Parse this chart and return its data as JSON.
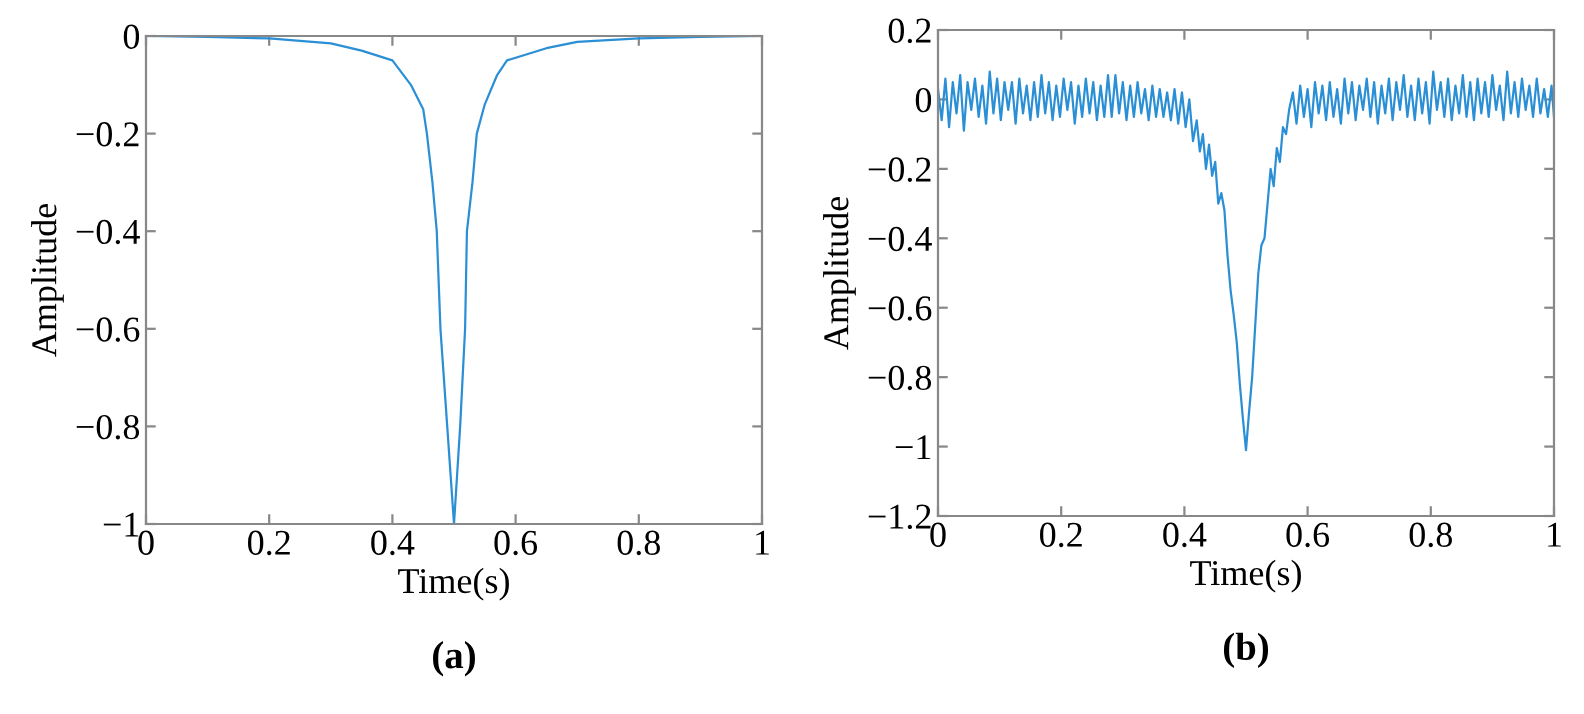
{
  "chart_data": [
    {
      "type": "line",
      "xlabel": "Time(s)",
      "ylabel": "Amplitude",
      "annotations": [
        "(a)"
      ],
      "xlim": [
        0,
        1
      ],
      "ylim": [
        -1,
        0
      ],
      "xticks": [
        0,
        0.2,
        0.4,
        0.6,
        0.8,
        1
      ],
      "yticks": [
        -1,
        -0.8,
        -0.6,
        -0.4,
        -0.2,
        0
      ],
      "series": [
        {
          "color": "#2b8fd6",
          "x": [
            0,
            0.1,
            0.2,
            0.3,
            0.35,
            0.4,
            0.43,
            0.45,
            0.456,
            0.465,
            0.472,
            0.478,
            0.489,
            0.5,
            0.51,
            0.518,
            0.521,
            0.53,
            0.537,
            0.55,
            0.57,
            0.586,
            0.65,
            0.7,
            0.8,
            0.9,
            1
          ],
          "values": [
            0,
            -0.002,
            -0.005,
            -0.015,
            -0.03,
            -0.05,
            -0.1,
            -0.15,
            -0.2,
            -0.3,
            -0.4,
            -0.6,
            -0.8,
            -1,
            -0.8,
            -0.6,
            -0.4,
            -0.3,
            -0.2,
            -0.14,
            -0.08,
            -0.05,
            -0.025,
            -0.012,
            -0.005,
            -0.002,
            0
          ]
        }
      ]
    },
    {
      "type": "line",
      "xlabel": "Time(s)",
      "ylabel": "Amplitude",
      "annotations": [
        "(b)"
      ],
      "xlim": [
        0,
        1
      ],
      "ylim": [
        -1.2,
        0.2
      ],
      "xticks": [
        0,
        0.2,
        0.4,
        0.6,
        0.8,
        1
      ],
      "yticks": [
        -1.2,
        -1,
        -0.8,
        -0.6,
        -0.4,
        -0.2,
        0,
        0.2
      ],
      "series": [
        {
          "color": "#2b8fd6",
          "x": [
            0,
            0.006,
            0.012,
            0.018,
            0.024,
            0.03,
            0.036,
            0.042,
            0.048,
            0.054,
            0.06,
            0.066,
            0.072,
            0.078,
            0.084,
            0.09,
            0.096,
            0.102,
            0.108,
            0.114,
            0.12,
            0.126,
            0.132,
            0.138,
            0.144,
            0.15,
            0.156,
            0.162,
            0.168,
            0.174,
            0.18,
            0.186,
            0.192,
            0.198,
            0.204,
            0.21,
            0.216,
            0.222,
            0.228,
            0.234,
            0.24,
            0.246,
            0.252,
            0.258,
            0.264,
            0.27,
            0.276,
            0.282,
            0.288,
            0.294,
            0.3,
            0.306,
            0.312,
            0.318,
            0.324,
            0.33,
            0.336,
            0.342,
            0.348,
            0.354,
            0.36,
            0.366,
            0.372,
            0.378,
            0.384,
            0.39,
            0.396,
            0.402,
            0.408,
            0.414,
            0.42,
            0.425,
            0.43,
            0.435,
            0.44,
            0.445,
            0.45,
            0.455,
            0.46,
            0.465,
            0.47,
            0.475,
            0.48,
            0.485,
            0.49,
            0.495,
            0.5,
            0.505,
            0.51,
            0.515,
            0.52,
            0.525,
            0.53,
            0.535,
            0.54,
            0.545,
            0.55,
            0.555,
            0.56,
            0.565,
            0.57,
            0.576,
            0.582,
            0.588,
            0.594,
            0.6,
            0.606,
            0.612,
            0.618,
            0.624,
            0.63,
            0.636,
            0.642,
            0.648,
            0.654,
            0.66,
            0.666,
            0.672,
            0.678,
            0.684,
            0.69,
            0.696,
            0.702,
            0.708,
            0.714,
            0.72,
            0.726,
            0.732,
            0.738,
            0.744,
            0.75,
            0.756,
            0.762,
            0.768,
            0.774,
            0.78,
            0.786,
            0.792,
            0.798,
            0.804,
            0.81,
            0.816,
            0.822,
            0.828,
            0.834,
            0.84,
            0.846,
            0.852,
            0.858,
            0.864,
            0.87,
            0.876,
            0.882,
            0.888,
            0.894,
            0.9,
            0.906,
            0.912,
            0.918,
            0.924,
            0.93,
            0.936,
            0.942,
            0.948,
            0.954,
            0.96,
            0.966,
            0.972,
            0.978,
            0.984,
            0.99,
            0.996,
            1
          ],
          "values": [
            0.03,
            -0.06,
            0.06,
            -0.08,
            0.05,
            -0.04,
            0.07,
            -0.09,
            0.05,
            -0.03,
            0.06,
            -0.05,
            0.04,
            -0.07,
            0.08,
            -0.04,
            0.06,
            -0.06,
            0.05,
            -0.03,
            0.05,
            -0.07,
            0.06,
            -0.04,
            0.04,
            -0.06,
            0.05,
            -0.05,
            0.07,
            -0.04,
            0.05,
            -0.06,
            0.04,
            -0.05,
            0.06,
            -0.03,
            0.05,
            -0.07,
            0.04,
            -0.05,
            0.06,
            -0.04,
            0.05,
            -0.06,
            0.04,
            -0.05,
            0.07,
            -0.05,
            0.07,
            -0.04,
            0.05,
            -0.06,
            0.04,
            -0.05,
            0.05,
            -0.04,
            0.03,
            -0.06,
            0.04,
            -0.05,
            0.03,
            -0.05,
            0.02,
            -0.06,
            0.03,
            -0.07,
            0.02,
            -0.08,
            0.0,
            -0.12,
            -0.06,
            -0.15,
            -0.1,
            -0.2,
            -0.13,
            -0.22,
            -0.18,
            -0.3,
            -0.27,
            -0.32,
            -0.45,
            -0.55,
            -0.62,
            -0.7,
            -0.82,
            -0.92,
            -1.01,
            -0.9,
            -0.8,
            -0.65,
            -0.5,
            -0.42,
            -0.4,
            -0.3,
            -0.2,
            -0.25,
            -0.14,
            -0.18,
            -0.08,
            -0.1,
            -0.03,
            0.02,
            -0.07,
            0.04,
            -0.05,
            0.03,
            -0.08,
            0.05,
            -0.04,
            0.04,
            -0.06,
            0.05,
            -0.05,
            0.03,
            -0.07,
            0.06,
            -0.04,
            0.05,
            -0.06,
            0.04,
            -0.03,
            0.06,
            -0.05,
            0.05,
            -0.07,
            0.04,
            -0.04,
            0.06,
            -0.06,
            0.05,
            -0.03,
            0.07,
            -0.05,
            0.04,
            -0.06,
            0.06,
            -0.04,
            0.05,
            -0.07,
            0.08,
            -0.03,
            0.05,
            -0.05,
            0.06,
            -0.06,
            0.04,
            -0.04,
            0.07,
            -0.05,
            0.05,
            -0.06,
            0.06,
            -0.04,
            0.05,
            -0.05,
            0.07,
            -0.03,
            0.04,
            -0.06,
            0.08,
            -0.04,
            0.05,
            -0.05,
            0.06,
            -0.03,
            0.04,
            -0.05,
            0.06,
            -0.04,
            0.03,
            -0.05,
            0.04,
            -0.05
          ]
        }
      ]
    }
  ]
}
